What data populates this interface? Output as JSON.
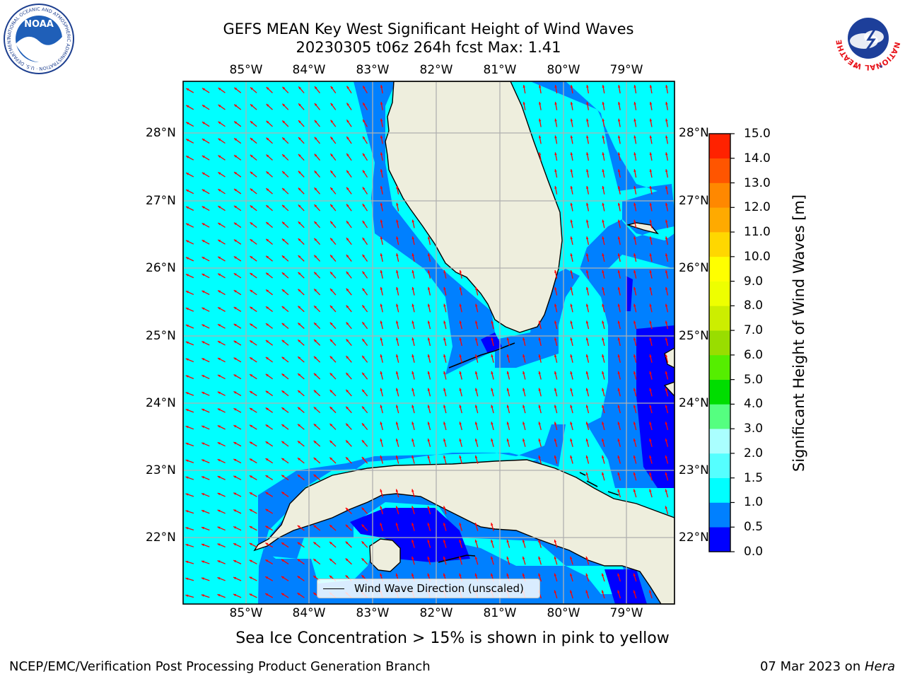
{
  "header": {
    "title_line1": "GEFS MEAN Key West Significant Height of Wind Waves",
    "title_line2": "20230305 t06z 264h fcst   Max: 1.41"
  },
  "logos": {
    "left_logo_text": "NOAA",
    "left_logo_ring_text": "NATIONAL OCEANIC AND ATMOSPHERIC ADMINISTRATION · U.S. DEPARTMENT OF COMMERCE",
    "right_logo_ring_text": "NATIONAL WEATHER SERVICE"
  },
  "map": {
    "lon_labels": [
      "85°W",
      "84°W",
      "83°W",
      "82°W",
      "81°W",
      "80°W",
      "79°W"
    ],
    "lat_labels": [
      "28°N",
      "27°N",
      "26°N",
      "25°N",
      "24°N",
      "23°N",
      "22°N"
    ],
    "legend_label": "Wind Wave Direction (unscaled)",
    "colors": {
      "ocean_high": "#00ffff",
      "ocean_mid": "#0080ff",
      "ocean_low": "#0000ff",
      "land": "#eeeedd",
      "arrow": "#ff0000",
      "grid": "#b0b0b0"
    }
  },
  "colorbar": {
    "label": "Significant Height of Wind Waves [m]",
    "ticks": [
      "0.0",
      "0.5",
      "1.0",
      "1.5",
      "2.0",
      "3.0",
      "4.0",
      "5.0",
      "6.0",
      "7.0",
      "8.0",
      "9.0",
      "10.0",
      "11.0",
      "12.0",
      "13.0",
      "14.0",
      "15.0"
    ],
    "colors": [
      "#0000ff",
      "#0080ff",
      "#00ffff",
      "#55ffff",
      "#aaffff",
      "#55ff80",
      "#00dd00",
      "#55ee00",
      "#99dd00",
      "#ccee00",
      "#eeff00",
      "#ffff00",
      "#ffd700",
      "#ffaa00",
      "#ff8800",
      "#ff5500",
      "#ff2200"
    ]
  },
  "notes": {
    "ice": "Sea Ice Concentration > 15% is shown in pink to yellow"
  },
  "footer": {
    "left": "NCEP/EMC/Verification Post Processing Product Generation Branch",
    "right_date": "07 Mar 2023 on ",
    "right_host": "Hera"
  }
}
